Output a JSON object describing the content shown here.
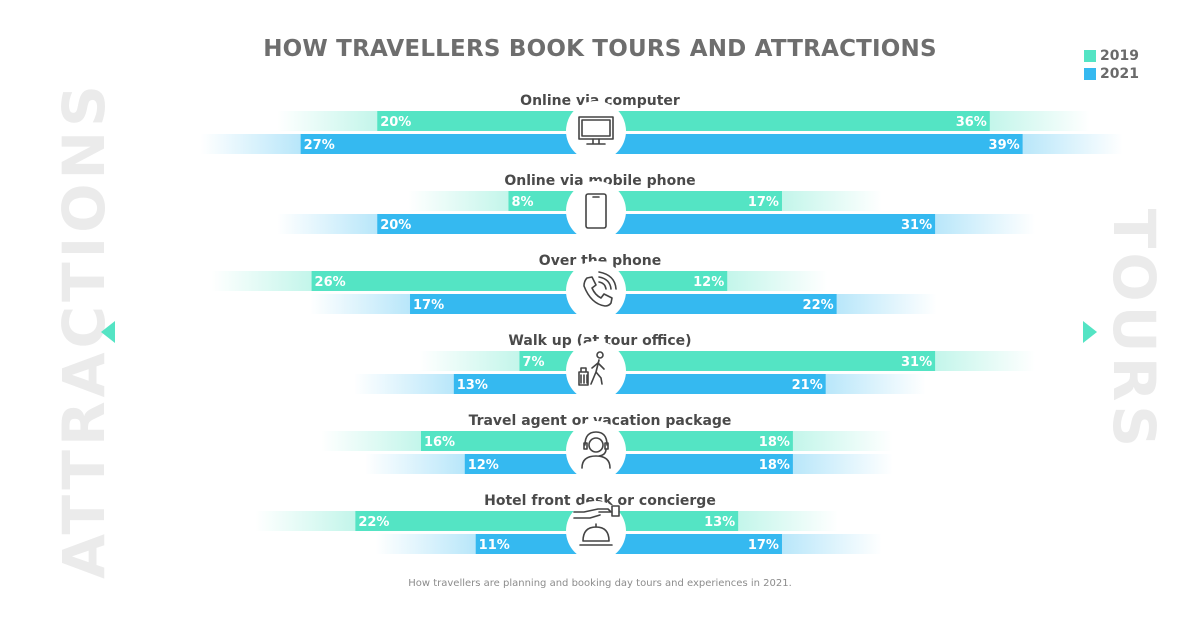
{
  "colors": {
    "y2019": "#54e4c4",
    "y2021": "#35b9f0",
    "title": "#6e6e6e",
    "side_label": "#ebebeb",
    "icon_circle": "#ffffff",
    "icon_stroke": "#444444"
  },
  "side_labels": {
    "left": "ATTRACTIONS",
    "right": "TOURS"
  },
  "caption": "How travellers are planning and booking day tours and experiences in 2021.",
  "chart_data": {
    "type": "bar",
    "title": "HOW TRAVELLERS BOOK TOURS AND ATTRACTIONS",
    "layout": "diverging",
    "value_unit": "%",
    "legend": {
      "placement": "top-right",
      "entries": [
        "2019",
        "2021"
      ]
    },
    "categories": [
      "Online via computer",
      "Online via mobile phone",
      "Over the phone",
      "Walk up (at tour office)",
      "Travel agent or vacation package",
      "Hotel front desk or concierge"
    ],
    "icons": [
      "computer-icon",
      "mobile-phone-icon",
      "phone-call-icon",
      "walking-traveler-icon",
      "travel-agent-headset-icon",
      "hotel-bell-icon"
    ],
    "sides": [
      "ATTRACTIONS",
      "TOURS"
    ],
    "series": [
      {
        "name": "2019",
        "attractions": [
          20,
          8,
          26,
          7,
          16,
          22
        ],
        "tours": [
          36,
          17,
          12,
          31,
          18,
          13
        ]
      },
      {
        "name": "2021",
        "attractions": [
          27,
          20,
          17,
          13,
          12,
          11
        ],
        "tours": [
          39,
          31,
          22,
          21,
          18,
          17
        ]
      }
    ],
    "xlim": [
      0,
      39
    ],
    "grid": false
  }
}
